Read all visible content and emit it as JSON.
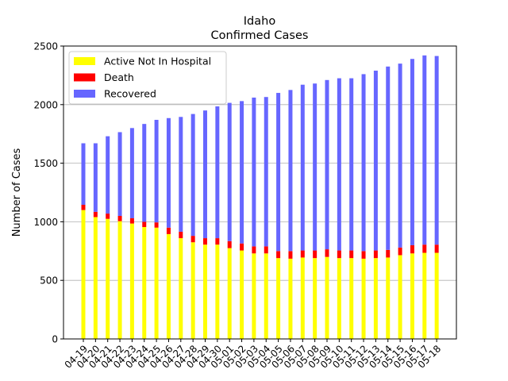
{
  "chart_data": {
    "type": "bar",
    "stacked": true,
    "title": "Idaho",
    "subtitle": "Confirmed Cases",
    "xlabel": "",
    "ylabel": "Number of Cases",
    "ylim": [
      0,
      2500
    ],
    "yticks": [
      0,
      500,
      1000,
      1500,
      2000,
      2500
    ],
    "grid": "y",
    "legend_position": "top-left",
    "categories": [
      "04-19",
      "04-20",
      "04-21",
      "04-22",
      "04-23",
      "04-24",
      "04-25",
      "04-26",
      "04-27",
      "04-28",
      "04-29",
      "04-30",
      "05-01",
      "05-02",
      "05-03",
      "05-04",
      "05-05",
      "05-06",
      "05-07",
      "05-08",
      "05-09",
      "05-10",
      "05-11",
      "05-12",
      "05-13",
      "05-14",
      "05-15",
      "05-16",
      "05-17",
      "05-18"
    ],
    "series": [
      {
        "name": "Active Not In Hospital",
        "color": "#ffff00",
        "values": [
          1100,
          1040,
          1025,
          1005,
          985,
          955,
          950,
          895,
          860,
          825,
          805,
          805,
          775,
          755,
          730,
          730,
          690,
          685,
          695,
          690,
          700,
          690,
          690,
          685,
          690,
          695,
          715,
          730,
          735,
          735
        ]
      },
      {
        "name": "Death",
        "color": "#ff0000",
        "values": [
          45,
          45,
          45,
          45,
          45,
          45,
          45,
          55,
          55,
          55,
          55,
          55,
          60,
          60,
          60,
          60,
          60,
          65,
          60,
          65,
          65,
          65,
          65,
          65,
          65,
          65,
          65,
          70,
          70,
          70
        ]
      },
      {
        "name": "Recovered",
        "color": "#6666ff",
        "values": [
          525,
          585,
          660,
          715,
          770,
          835,
          875,
          935,
          980,
          1040,
          1090,
          1125,
          1180,
          1215,
          1270,
          1275,
          1350,
          1375,
          1415,
          1425,
          1445,
          1470,
          1470,
          1510,
          1535,
          1565,
          1570,
          1590,
          1615,
          1610
        ]
      }
    ]
  }
}
